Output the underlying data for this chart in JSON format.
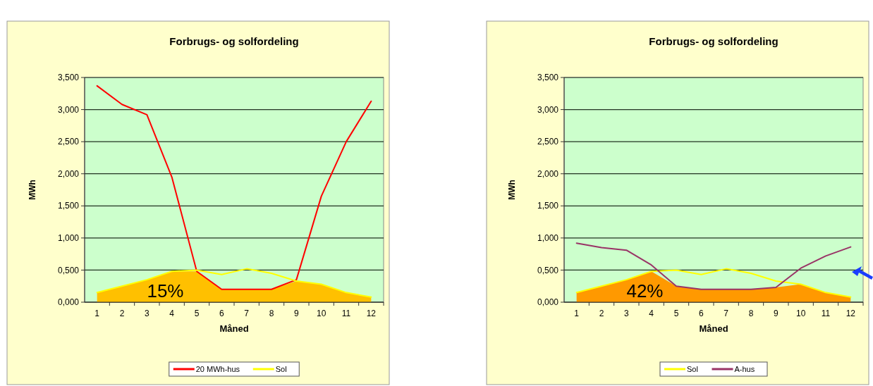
{
  "chart_data": [
    {
      "type": "line",
      "title": "Forbrugs- og solfordeling",
      "xlabel": "Måned",
      "ylabel": "MWh",
      "categories": [
        "1",
        "2",
        "3",
        "4",
        "5",
        "6",
        "7",
        "8",
        "9",
        "10",
        "11",
        "12"
      ],
      "ylim": [
        0,
        3.5
      ],
      "yticks": [
        {
          "value": 0,
          "label": "0,000"
        },
        {
          "value": 0.5,
          "label": "0,500"
        },
        {
          "value": 1,
          "label": "1,000"
        },
        {
          "value": 1.5,
          "label": "1,500"
        },
        {
          "value": 2,
          "label": "2,000"
        },
        {
          "value": 2.5,
          "label": "2,500"
        },
        {
          "value": 3,
          "label": "3,000"
        },
        {
          "value": 3.5,
          "label": "3,500"
        }
      ],
      "grid": "y",
      "legend": "bottom",
      "annotations": [
        "15%"
      ],
      "series": [
        {
          "type": "area",
          "color": "#ffc000",
          "values": [
            0.15,
            0.25,
            0.35,
            0.48,
            0.48,
            0.2,
            0.2,
            0.2,
            0.33,
            0.28,
            0.15,
            0.08
          ]
        },
        {
          "name": "20 MWh-hus",
          "color": "#ff0000",
          "values": [
            3.37,
            3.08,
            2.92,
            1.95,
            0.48,
            0.2,
            0.2,
            0.2,
            0.35,
            1.65,
            2.5,
            3.13
          ]
        },
        {
          "name": "Sol",
          "color": "#ffff00",
          "values": [
            0.15,
            0.25,
            0.35,
            0.48,
            0.5,
            0.43,
            0.52,
            0.45,
            0.33,
            0.28,
            0.15,
            0.08
          ]
        }
      ]
    },
    {
      "type": "line",
      "title": "Forbrugs- og solfordeling",
      "xlabel": "Måned",
      "ylabel": "MWh",
      "categories": [
        "1",
        "2",
        "3",
        "4",
        "5",
        "6",
        "7",
        "8",
        "9",
        "10",
        "11",
        "12"
      ],
      "ylim": [
        0,
        3.5
      ],
      "yticks": [
        {
          "value": 0,
          "label": "0,000"
        },
        {
          "value": 0.5,
          "label": "0,500"
        },
        {
          "value": 1,
          "label": "1,000"
        },
        {
          "value": 1.5,
          "label": "1,500"
        },
        {
          "value": 2,
          "label": "2,000"
        },
        {
          "value": 2.5,
          "label": "2,500"
        },
        {
          "value": 3,
          "label": "3,000"
        },
        {
          "value": 3.5,
          "label": "3,500"
        }
      ],
      "grid": "y",
      "legend": "bottom",
      "annotations": [
        "42%"
      ],
      "series": [
        {
          "type": "area",
          "color": "#ff9900",
          "values": [
            0.15,
            0.25,
            0.35,
            0.48,
            0.25,
            0.2,
            0.2,
            0.2,
            0.23,
            0.28,
            0.15,
            0.08
          ]
        },
        {
          "name": "Sol",
          "color": "#ffff00",
          "values": [
            0.15,
            0.25,
            0.35,
            0.48,
            0.5,
            0.43,
            0.52,
            0.45,
            0.33,
            0.28,
            0.15,
            0.08
          ]
        },
        {
          "name": "A-hus",
          "color": "#993366",
          "values": [
            0.92,
            0.85,
            0.81,
            0.58,
            0.25,
            0.2,
            0.2,
            0.2,
            0.23,
            0.53,
            0.72,
            0.86
          ]
        }
      ]
    }
  ]
}
